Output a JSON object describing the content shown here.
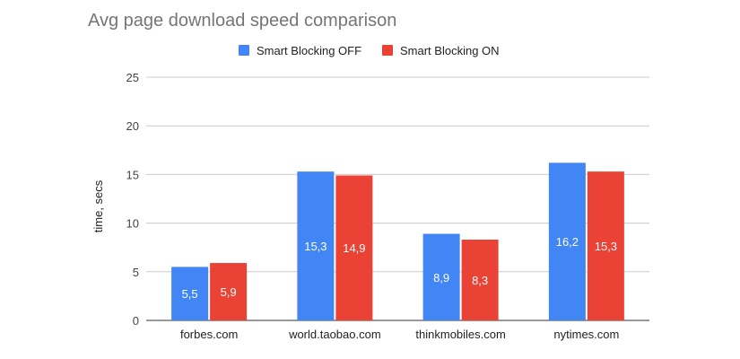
{
  "chart_data": {
    "type": "bar",
    "title": "Avg page download speed comparison",
    "xlabel": "",
    "ylabel": "time, secs",
    "ylim": [
      0,
      25
    ],
    "yticks": [
      0,
      5,
      10,
      15,
      20,
      25
    ],
    "grid": true,
    "legend_position": "top",
    "categories": [
      "forbes.com",
      "world.taobao.com",
      "thinkmobiles.com",
      "nytimes.com"
    ],
    "series": [
      {
        "name": "Smart Blocking OFF",
        "color": "#4285F4",
        "values": [
          5.5,
          15.3,
          8.9,
          16.2
        ],
        "labels": [
          "5,5",
          "15,3",
          "8,9",
          "16,2"
        ]
      },
      {
        "name": "Smart Blocking ON",
        "color": "#EA4335",
        "values": [
          5.9,
          14.9,
          8.3,
          15.3
        ],
        "labels": [
          "5,9",
          "14,9",
          "8,3",
          "15,3"
        ]
      }
    ]
  }
}
